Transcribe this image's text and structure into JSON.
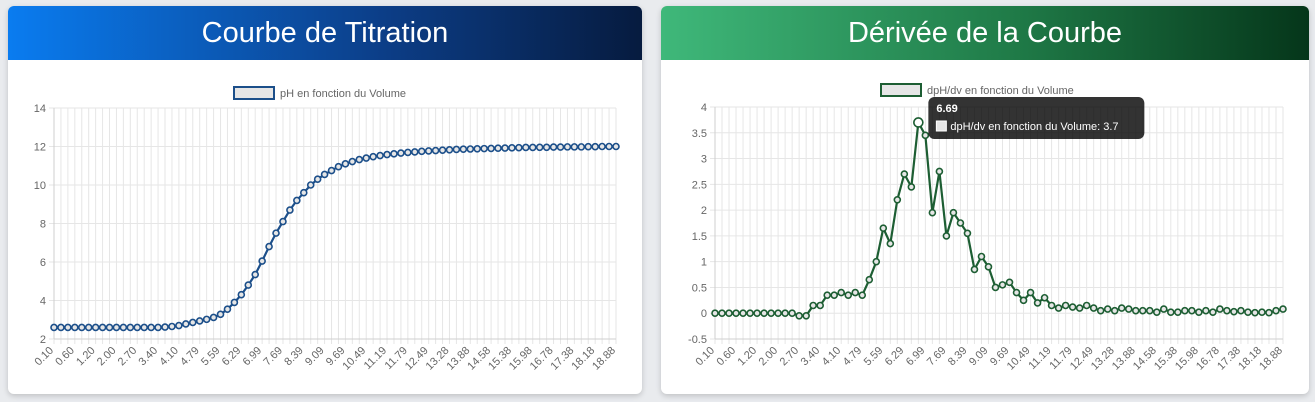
{
  "panels": {
    "left_title": "Courbe de Titration",
    "right_title": "Dérivée de la Courbe"
  },
  "tooltip": {
    "title": "6.69",
    "label": "dpH/dv en fonction du Volume: 3.7"
  },
  "chart_data": [
    {
      "type": "line",
      "title": "Courbe de Titration",
      "color": "#1c4f8a",
      "series": [
        {
          "name": "pH en fonction du Volume"
        }
      ],
      "x_tick_labels": [
        "0.10",
        "0.60",
        "1.20",
        "2.00",
        "2.70",
        "3.40",
        "4.10",
        "4.79",
        "5.59",
        "6.29",
        "6.99",
        "7.69",
        "8.39",
        "9.09",
        "9.69",
        "10.49",
        "11.19",
        "11.79",
        "12.49",
        "13.28",
        "13.88",
        "14.58",
        "15.38",
        "15.98",
        "16.78",
        "17.38",
        "18.18",
        "18.88"
      ],
      "y_ticks": [
        2,
        4,
        6,
        8,
        10,
        12,
        14
      ],
      "ylim": [
        2,
        14
      ],
      "x_count": 82,
      "y": [
        2.6,
        2.6,
        2.6,
        2.6,
        2.6,
        2.6,
        2.6,
        2.6,
        2.6,
        2.6,
        2.6,
        2.6,
        2.6,
        2.6,
        2.6,
        2.6,
        2.62,
        2.65,
        2.7,
        2.78,
        2.86,
        2.94,
        3.02,
        3.12,
        3.28,
        3.55,
        3.9,
        4.3,
        4.8,
        5.35,
        6.05,
        6.8,
        7.5,
        8.1,
        8.7,
        9.2,
        9.6,
        10.0,
        10.3,
        10.55,
        10.75,
        10.95,
        11.1,
        11.22,
        11.32,
        11.4,
        11.47,
        11.53,
        11.58,
        11.62,
        11.66,
        11.69,
        11.72,
        11.75,
        11.77,
        11.79,
        11.81,
        11.83,
        11.85,
        11.86,
        11.87,
        11.88,
        11.89,
        11.9,
        11.91,
        11.92,
        11.93,
        11.94,
        11.95,
        11.95,
        11.96,
        11.96,
        11.97,
        11.97,
        11.98,
        11.98,
        11.98,
        11.99,
        11.99,
        12.0,
        12.0,
        12.0
      ],
      "legend": "top",
      "grid": true
    },
    {
      "type": "line",
      "title": "Dérivée de la Courbe",
      "color": "#1d5e33",
      "series": [
        {
          "name": "dpH/dv en fonction du Volume"
        }
      ],
      "x_tick_labels": [
        "0.10",
        "0.60",
        "1.20",
        "2.00",
        "2.70",
        "3.40",
        "4.10",
        "4.79",
        "5.59",
        "6.29",
        "6.99",
        "7.69",
        "8.39",
        "9.09",
        "9.69",
        "10.49",
        "11.19",
        "11.79",
        "12.49",
        "13.28",
        "13.88",
        "14.58",
        "15.38",
        "15.98",
        "16.78",
        "17.38",
        "18.18",
        "18.88"
      ],
      "y_ticks": [
        -0.5,
        0,
        0.5,
        1.0,
        1.5,
        2.0,
        2.5,
        3.0,
        3.5,
        4.0
      ],
      "ylim": [
        -0.5,
        4.0
      ],
      "x_count": 82,
      "y": [
        0,
        0,
        0,
        0,
        0,
        0,
        0,
        0,
        0,
        0,
        0,
        0,
        -0.05,
        -0.05,
        0.15,
        0.15,
        0.35,
        0.35,
        0.4,
        0.35,
        0.4,
        0.35,
        0.65,
        1.0,
        1.65,
        1.35,
        2.2,
        2.7,
        2.45,
        3.7,
        3.45,
        1.95,
        2.75,
        1.5,
        1.95,
        1.75,
        1.55,
        0.85,
        1.1,
        0.9,
        0.5,
        0.55,
        0.6,
        0.4,
        0.25,
        0.4,
        0.2,
        0.3,
        0.15,
        0.1,
        0.15,
        0.12,
        0.1,
        0.15,
        0.1,
        0.05,
        0.08,
        0.05,
        0.1,
        0.08,
        0.05,
        0.05,
        0.05,
        0.02,
        0.08,
        0.02,
        0.02,
        0.05,
        0.05,
        0.02,
        0.05,
        0.02,
        0.08,
        0.05,
        0.03,
        0.05,
        0.02,
        0.01,
        0.02,
        0.01,
        0.05,
        0.08
      ],
      "legend": "top",
      "grid": true,
      "highlight_index": 29
    }
  ]
}
